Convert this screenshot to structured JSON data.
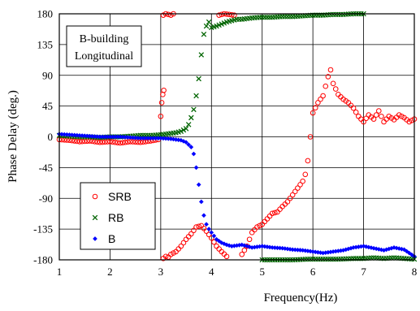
{
  "chart_data": {
    "type": "scatter",
    "xlabel": "Frequency(Hz)",
    "ylabel": "Phase Delay (deg.)",
    "xlim": [
      1,
      8
    ],
    "ylim": [
      -180,
      180
    ],
    "x_ticks": [
      "1",
      "2",
      "3",
      "4",
      "5",
      "6",
      "7",
      "8"
    ],
    "y_ticks": [
      "180",
      "135",
      "90",
      "45",
      "0",
      "-45",
      "-90",
      "-135",
      "-180"
    ],
    "grid": true,
    "annotation": [
      "B-building",
      "Longitudinal"
    ],
    "legend_position": "bottom-left",
    "series": [
      {
        "name": "SRB",
        "marker": "circle",
        "color": "#ff0000",
        "points": [
          [
            1.0,
            -4
          ],
          [
            1.2,
            -5
          ],
          [
            1.4,
            -7
          ],
          [
            1.6,
            -6
          ],
          [
            1.8,
            -8
          ],
          [
            2.0,
            -7
          ],
          [
            2.2,
            -9
          ],
          [
            2.4,
            -7
          ],
          [
            2.6,
            -8
          ],
          [
            2.8,
            -6
          ],
          [
            2.95,
            -4
          ],
          [
            3.0,
            30
          ],
          [
            3.02,
            50
          ],
          [
            3.04,
            62
          ],
          [
            3.06,
            68
          ],
          [
            3.05,
            178
          ],
          [
            3.1,
            180
          ],
          [
            3.15,
            179
          ],
          [
            3.2,
            178
          ],
          [
            3.25,
            180
          ],
          [
            3.05,
            -178
          ],
          [
            3.1,
            -175
          ],
          [
            3.15,
            -176
          ],
          [
            3.2,
            -172
          ],
          [
            3.3,
            -168
          ],
          [
            3.4,
            -160
          ],
          [
            3.5,
            -150
          ],
          [
            3.6,
            -142
          ],
          [
            3.7,
            -132
          ],
          [
            3.8,
            -130
          ],
          [
            3.9,
            -138
          ],
          [
            4.0,
            -148
          ],
          [
            4.1,
            -160
          ],
          [
            4.2,
            -168
          ],
          [
            4.3,
            -175
          ],
          [
            4.15,
            178
          ],
          [
            4.25,
            180
          ],
          [
            4.35,
            179
          ],
          [
            4.45,
            178
          ],
          [
            4.6,
            -172
          ],
          [
            4.7,
            -160
          ],
          [
            4.8,
            -140
          ],
          [
            4.9,
            -132
          ],
          [
            5.0,
            -128
          ],
          [
            5.1,
            -120
          ],
          [
            5.2,
            -112
          ],
          [
            5.3,
            -110
          ],
          [
            5.4,
            -102
          ],
          [
            5.5,
            -95
          ],
          [
            5.6,
            -85
          ],
          [
            5.7,
            -75
          ],
          [
            5.8,
            -65
          ],
          [
            5.85,
            -55
          ],
          [
            5.9,
            -35
          ],
          [
            5.95,
            0
          ],
          [
            6.0,
            35
          ],
          [
            6.1,
            50
          ],
          [
            6.2,
            60
          ],
          [
            6.3,
            88
          ],
          [
            6.35,
            98
          ],
          [
            6.4,
            78
          ],
          [
            6.5,
            62
          ],
          [
            6.6,
            55
          ],
          [
            6.7,
            50
          ],
          [
            6.8,
            42
          ],
          [
            6.9,
            30
          ],
          [
            7.0,
            22
          ],
          [
            7.1,
            32
          ],
          [
            7.2,
            26
          ],
          [
            7.3,
            38
          ],
          [
            7.4,
            22
          ],
          [
            7.5,
            30
          ],
          [
            7.6,
            25
          ],
          [
            7.7,
            32
          ],
          [
            7.8,
            28
          ],
          [
            7.9,
            22
          ],
          [
            8.0,
            26
          ]
        ]
      },
      {
        "name": "RB",
        "marker": "x",
        "color": "#006400",
        "points": [
          [
            1.0,
            2
          ],
          [
            1.2,
            1
          ],
          [
            1.4,
            0
          ],
          [
            1.6,
            0
          ],
          [
            1.8,
            -1
          ],
          [
            2.0,
            0
          ],
          [
            2.2,
            0
          ],
          [
            2.4,
            1
          ],
          [
            2.6,
            2
          ],
          [
            2.8,
            2
          ],
          [
            3.0,
            3
          ],
          [
            3.1,
            4
          ],
          [
            3.2,
            5
          ],
          [
            3.3,
            6
          ],
          [
            3.4,
            8
          ],
          [
            3.5,
            12
          ],
          [
            3.55,
            18
          ],
          [
            3.6,
            28
          ],
          [
            3.65,
            40
          ],
          [
            3.7,
            60
          ],
          [
            3.75,
            85
          ],
          [
            3.8,
            120
          ],
          [
            3.85,
            150
          ],
          [
            3.9,
            162
          ],
          [
            3.95,
            168
          ],
          [
            4.0,
            160
          ],
          [
            4.1,
            162
          ],
          [
            4.2,
            165
          ],
          [
            4.3,
            168
          ],
          [
            4.4,
            170
          ],
          [
            4.5,
            172
          ],
          [
            4.6,
            172
          ],
          [
            4.8,
            174
          ],
          [
            5.0,
            175
          ],
          [
            5.2,
            175
          ],
          [
            5.4,
            176
          ],
          [
            5.6,
            176
          ],
          [
            5.8,
            177
          ],
          [
            6.0,
            178
          ],
          [
            6.2,
            178
          ],
          [
            6.4,
            179
          ],
          [
            6.6,
            179
          ],
          [
            6.8,
            180
          ],
          [
            7.0,
            180
          ],
          [
            5.0,
            -180
          ],
          [
            5.3,
            -180
          ],
          [
            5.6,
            -180
          ],
          [
            5.9,
            -179
          ],
          [
            6.2,
            -179
          ],
          [
            6.5,
            -179
          ],
          [
            6.8,
            -178
          ],
          [
            7.0,
            -178
          ],
          [
            7.2,
            -177
          ],
          [
            7.4,
            -178
          ],
          [
            7.6,
            -177
          ],
          [
            7.8,
            -178
          ],
          [
            8.0,
            -179
          ]
        ]
      },
      {
        "name": "B",
        "marker": "diamond",
        "color": "#0000ff",
        "points": [
          [
            1.0,
            4
          ],
          [
            1.2,
            3
          ],
          [
            1.4,
            2
          ],
          [
            1.6,
            1
          ],
          [
            1.8,
            0
          ],
          [
            2.0,
            0
          ],
          [
            2.2,
            0
          ],
          [
            2.4,
            -1
          ],
          [
            2.6,
            -2
          ],
          [
            2.8,
            -2
          ],
          [
            3.0,
            -2
          ],
          [
            3.2,
            -3
          ],
          [
            3.4,
            -5
          ],
          [
            3.5,
            -8
          ],
          [
            3.6,
            -15
          ],
          [
            3.65,
            -25
          ],
          [
            3.7,
            -45
          ],
          [
            3.75,
            -70
          ],
          [
            3.8,
            -95
          ],
          [
            3.85,
            -115
          ],
          [
            3.9,
            -128
          ],
          [
            3.95,
            -135
          ],
          [
            4.0,
            -140
          ],
          [
            4.1,
            -150
          ],
          [
            4.2,
            -155
          ],
          [
            4.3,
            -158
          ],
          [
            4.4,
            -160
          ],
          [
            4.6,
            -158
          ],
          [
            4.8,
            -162
          ],
          [
            5.0,
            -160
          ],
          [
            5.2,
            -162
          ],
          [
            5.4,
            -163
          ],
          [
            5.6,
            -165
          ],
          [
            5.8,
            -166
          ],
          [
            6.0,
            -168
          ],
          [
            6.2,
            -170
          ],
          [
            6.4,
            -168
          ],
          [
            6.6,
            -166
          ],
          [
            6.8,
            -162
          ],
          [
            7.0,
            -160
          ],
          [
            7.2,
            -163
          ],
          [
            7.4,
            -166
          ],
          [
            7.6,
            -162
          ],
          [
            7.8,
            -165
          ],
          [
            7.9,
            -170
          ],
          [
            8.0,
            -175
          ]
        ]
      }
    ]
  }
}
